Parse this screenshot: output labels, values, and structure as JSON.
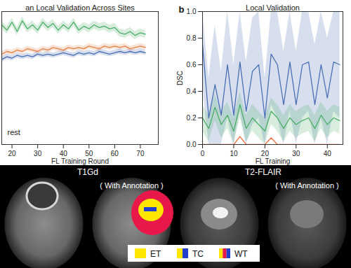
{
  "chart_data": [
    {
      "type": "line",
      "title": "an Local Validation Across Sites",
      "xlabel": "FL Training Round",
      "x": [
        16,
        18,
        20,
        22,
        24,
        26,
        28,
        30,
        32,
        34,
        36,
        38,
        40,
        42,
        44,
        46,
        48,
        50,
        52,
        54,
        56,
        58,
        60,
        62,
        64,
        66,
        68,
        70,
        72
      ],
      "xlim": [
        16,
        77
      ],
      "xticks": [
        20,
        30,
        40,
        50,
        60,
        70
      ],
      "ylim": [
        0,
        1
      ],
      "tick_labels": "x",
      "annotations": [
        "rest"
      ],
      "series": [
        {
          "color": "#4caf68",
          "values": [
            0.9,
            0.86,
            0.92,
            0.85,
            0.93,
            0.87,
            0.9,
            0.86,
            0.92,
            0.88,
            0.91,
            0.86,
            0.9,
            0.87,
            0.92,
            0.86,
            0.89,
            0.87,
            0.9,
            0.88,
            0.89,
            0.87,
            0.88,
            0.84,
            0.83,
            0.85,
            0.82,
            0.84,
            0.83
          ],
          "lower": [
            0.87,
            0.83,
            0.89,
            0.82,
            0.9,
            0.84,
            0.87,
            0.83,
            0.89,
            0.85,
            0.88,
            0.83,
            0.87,
            0.84,
            0.89,
            0.83,
            0.86,
            0.84,
            0.87,
            0.85,
            0.86,
            0.84,
            0.85,
            0.81,
            0.8,
            0.82,
            0.79,
            0.81,
            0.8
          ],
          "upper": [
            0.93,
            0.89,
            0.95,
            0.88,
            0.96,
            0.9,
            0.93,
            0.89,
            0.95,
            0.91,
            0.94,
            0.89,
            0.93,
            0.9,
            0.95,
            0.89,
            0.92,
            0.9,
            0.93,
            0.91,
            0.92,
            0.9,
            0.91,
            0.87,
            0.86,
            0.88,
            0.85,
            0.87,
            0.86
          ]
        },
        {
          "color": "#e8824a",
          "values": [
            0.68,
            0.7,
            0.69,
            0.71,
            0.7,
            0.72,
            0.71,
            0.7,
            0.72,
            0.71,
            0.73,
            0.72,
            0.71,
            0.73,
            0.72,
            0.73,
            0.72,
            0.74,
            0.73,
            0.72,
            0.74,
            0.73,
            0.74,
            0.73,
            0.74,
            0.72,
            0.73,
            0.74,
            0.73
          ],
          "lower": [
            0.66,
            0.68,
            0.67,
            0.69,
            0.68,
            0.7,
            0.69,
            0.68,
            0.7,
            0.69,
            0.71,
            0.7,
            0.69,
            0.71,
            0.7,
            0.71,
            0.7,
            0.72,
            0.71,
            0.7,
            0.72,
            0.71,
            0.72,
            0.71,
            0.72,
            0.7,
            0.71,
            0.72,
            0.71
          ],
          "upper": [
            0.7,
            0.72,
            0.71,
            0.73,
            0.72,
            0.74,
            0.73,
            0.72,
            0.74,
            0.73,
            0.75,
            0.74,
            0.73,
            0.75,
            0.74,
            0.75,
            0.74,
            0.76,
            0.75,
            0.74,
            0.76,
            0.75,
            0.76,
            0.75,
            0.76,
            0.74,
            0.75,
            0.76,
            0.75
          ]
        },
        {
          "color": "#4a6fb5",
          "values": [
            0.64,
            0.66,
            0.65,
            0.67,
            0.66,
            0.67,
            0.66,
            0.68,
            0.67,
            0.68,
            0.67,
            0.68,
            0.69,
            0.68,
            0.67,
            0.69,
            0.68,
            0.69,
            0.68,
            0.7,
            0.69,
            0.68,
            0.69,
            0.7,
            0.69,
            0.7,
            0.69,
            0.7,
            0.69
          ],
          "lower": [
            0.62,
            0.64,
            0.63,
            0.65,
            0.64,
            0.65,
            0.64,
            0.66,
            0.65,
            0.66,
            0.65,
            0.66,
            0.67,
            0.66,
            0.65,
            0.67,
            0.66,
            0.67,
            0.66,
            0.68,
            0.67,
            0.66,
            0.67,
            0.68,
            0.67,
            0.68,
            0.67,
            0.68,
            0.67
          ],
          "upper": [
            0.66,
            0.68,
            0.67,
            0.69,
            0.68,
            0.69,
            0.68,
            0.7,
            0.69,
            0.7,
            0.69,
            0.7,
            0.71,
            0.7,
            0.69,
            0.71,
            0.7,
            0.71,
            0.7,
            0.72,
            0.71,
            0.7,
            0.71,
            0.72,
            0.71,
            0.72,
            0.71,
            0.72,
            0.71
          ]
        }
      ]
    },
    {
      "type": "line",
      "title": "Local Validation",
      "panel_label": "b",
      "xlabel": "FL Training",
      "ylabel": "DSC",
      "x": [
        0,
        2,
        4,
        6,
        8,
        10,
        12,
        14,
        16,
        18,
        20,
        22,
        24,
        26,
        28,
        30,
        32,
        34,
        36,
        38,
        40,
        42,
        44
      ],
      "xlim": [
        0,
        45
      ],
      "xticks": [
        0,
        10,
        20,
        30,
        40
      ],
      "ylim": [
        0,
        1
      ],
      "yticks": [
        {
          "value": 0,
          "label": "0.0"
        },
        {
          "value": 0.2,
          "label": "0.2"
        },
        {
          "value": 0.4,
          "label": "0.4"
        },
        {
          "value": 0.6,
          "label": "0.6"
        },
        {
          "value": 0.8,
          "label": "0.8"
        },
        {
          "value": 1,
          "label": "1.0"
        }
      ],
      "series": [
        {
          "color": "#4a6fb5",
          "values": [
            0.75,
            0.2,
            0.45,
            0.22,
            0.6,
            0.22,
            0.62,
            0.25,
            0.55,
            0.6,
            0.2,
            0.68,
            0.6,
            0.3,
            0.62,
            0.3,
            0.6,
            0.62,
            0.3,
            0.6,
            0.35,
            0.62,
            0.6
          ],
          "lower": [
            0.45,
            0,
            0,
            0,
            0.2,
            0,
            0.25,
            0,
            0.15,
            0.2,
            0,
            0.3,
            0.2,
            0,
            0.25,
            0,
            0.2,
            0.25,
            0,
            0.2,
            0,
            0.25,
            0.2
          ],
          "upper": [
            1,
            0.5,
            0.9,
            0.55,
            1,
            0.6,
            1,
            0.62,
            0.95,
            1,
            0.5,
            1,
            1,
            0.7,
            1,
            0.7,
            1,
            1,
            0.75,
            1,
            0.8,
            1,
            1
          ]
        },
        {
          "color": "#4caf68",
          "values": [
            0.2,
            0.12,
            0.28,
            0.15,
            0.22,
            0.1,
            0.3,
            0.12,
            0.2,
            0.15,
            0.1,
            0.25,
            0.2,
            0.12,
            0.2,
            0.15,
            0.18,
            0.2,
            0.12,
            0.22,
            0.15,
            0.2,
            0.18
          ],
          "lower": [
            0.1,
            0.02,
            0.18,
            0.05,
            0.12,
            0,
            0.2,
            0.02,
            0.1,
            0.05,
            0,
            0.15,
            0.1,
            0.02,
            0.1,
            0.05,
            0.08,
            0.1,
            0.02,
            0.12,
            0.05,
            0.1,
            0.08
          ],
          "upper": [
            0.3,
            0.22,
            0.38,
            0.25,
            0.32,
            0.2,
            0.4,
            0.22,
            0.3,
            0.25,
            0.2,
            0.35,
            0.3,
            0.22,
            0.3,
            0.25,
            0.28,
            0.3,
            0.22,
            0.32,
            0.25,
            0.3,
            0.28
          ]
        },
        {
          "color": "#f06a3a",
          "values": [
            0,
            0,
            0,
            0,
            0,
            0,
            0.06,
            0,
            0,
            0,
            0,
            0.05,
            0,
            0,
            0,
            0,
            0,
            0,
            0,
            0,
            0,
            0,
            0
          ]
        }
      ]
    }
  ],
  "image_panel": {
    "groups": [
      {
        "title": "T1Gd",
        "subtitle": "( With Annotation )"
      },
      {
        "title": "T2-FLAIR",
        "subtitle": "( With Annotation )"
      }
    ],
    "legend": [
      {
        "label": "ET",
        "colors": [
          "#ffe600"
        ]
      },
      {
        "label": "TC",
        "colors": [
          "#ffe600",
          "#1f3fcc"
        ]
      },
      {
        "label": "WT",
        "colors": [
          "#ffe600",
          "#e8184a",
          "#1f3fcc"
        ]
      }
    ]
  }
}
